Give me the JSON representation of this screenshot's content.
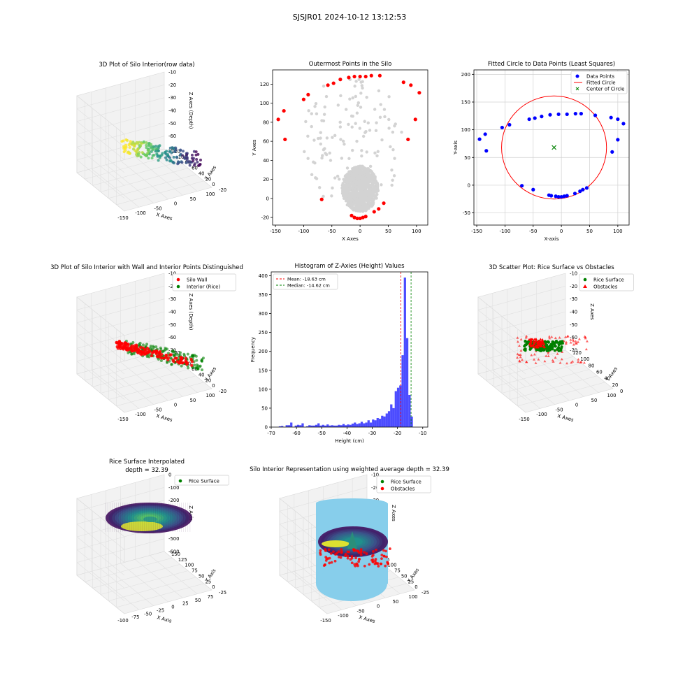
{
  "suptitle": "SJSJR01 2024-10-12 13:12:53",
  "chart_data": [
    {
      "id": "p1",
      "type": "scatter",
      "projection": "3d",
      "title": "3D Plot of Silo Interior(row data)",
      "xlabel": "X Axes",
      "ylabel": "Y Axes",
      "zlabel": "Z Axes (Depth)",
      "xticks": [
        "-150",
        "-100",
        "-50",
        "0",
        "50",
        "100"
      ],
      "yticks": [
        "-20",
        "0",
        "20",
        "40",
        "60",
        "80",
        "100",
        "120"
      ],
      "zticks": [
        "-70",
        "-60",
        "-50",
        "-40",
        "-30",
        "-20",
        "-10"
      ],
      "colormap": "viridis",
      "grid": true
    },
    {
      "id": "p2",
      "type": "scatter",
      "title": "Outermost Points in the Silo",
      "xlabel": "X Axes",
      "ylabel": "Y Axes",
      "xlim": [
        -155,
        120
      ],
      "ylim": [
        -28,
        135
      ],
      "xticks": [
        -150,
        -100,
        -50,
        0,
        50,
        100
      ],
      "yticks": [
        -20,
        0,
        20,
        40,
        60,
        80,
        100,
        120
      ],
      "colors": {
        "interior": "#d3d3d3",
        "outer": "#ff0000"
      },
      "series": [
        {
          "role": "outer",
          "points": [
            [
              -145,
              83
            ],
            [
              -135,
              92
            ],
            [
              -133,
              62
            ],
            [
              -100,
              104
            ],
            [
              -92,
              109
            ],
            [
              -68,
              -1
            ],
            [
              -57,
              119
            ],
            [
              -47,
              121
            ],
            [
              -35,
              125
            ],
            [
              -15,
              -18
            ],
            [
              -10,
              -20
            ],
            [
              -5,
              -21
            ],
            [
              0,
              -21
            ],
            [
              5,
              -20
            ],
            [
              10,
              -19
            ],
            [
              -20,
              127
            ],
            [
              -10,
              128
            ],
            [
              0,
              128
            ],
            [
              10,
              128
            ],
            [
              20,
              129
            ],
            [
              25,
              -14
            ],
            [
              33,
              -11
            ],
            [
              42,
              -5
            ],
            [
              35,
              129
            ],
            [
              77,
              122
            ],
            [
              85,
              62
            ],
            [
              90,
              119
            ],
            [
              98,
              83
            ],
            [
              105,
              111
            ]
          ]
        }
      ]
    },
    {
      "id": "p3",
      "type": "scatter",
      "title": "Fitted Circle to Data Points (Least Squares)",
      "xlabel": "X-axis",
      "ylabel": "Y-axis",
      "xlim": [
        -155,
        120
      ],
      "ylim": [
        -72,
        208
      ],
      "xticks": [
        -150,
        -100,
        -50,
        0,
        50,
        100
      ],
      "yticks": [
        -50,
        0,
        50,
        100,
        150,
        200
      ],
      "legend": [
        "Data Points",
        "Fitted Circle",
        "Center of Circle"
      ],
      "legend_loc": "upper right",
      "circle": {
        "cx": -13,
        "cy": 68,
        "r": 93
      },
      "colors": {
        "points": "#0000ff",
        "circle": "#ff0000",
        "center": "#008000"
      },
      "points": [
        [
          -145,
          83
        ],
        [
          -135,
          92
        ],
        [
          -133,
          62
        ],
        [
          -105,
          104
        ],
        [
          -92,
          109
        ],
        [
          -70,
          -1
        ],
        [
          -57,
          119
        ],
        [
          -47,
          121
        ],
        [
          -35,
          124
        ],
        [
          -20,
          127
        ],
        [
          -5,
          128
        ],
        [
          10,
          128
        ],
        [
          25,
          129
        ],
        [
          35,
          129
        ],
        [
          60,
          126
        ],
        [
          -50,
          -8
        ],
        [
          -22,
          -18
        ],
        [
          -18,
          -19
        ],
        [
          -10,
          -20
        ],
        [
          -5,
          -21
        ],
        [
          0,
          -21
        ],
        [
          5,
          -20
        ],
        [
          10,
          -19
        ],
        [
          24,
          -15
        ],
        [
          33,
          -11
        ],
        [
          38,
          -8
        ],
        [
          45,
          -5
        ],
        [
          88,
          122
        ],
        [
          90,
          60
        ],
        [
          100,
          119
        ],
        [
          100,
          82
        ],
        [
          110,
          111
        ]
      ]
    },
    {
      "id": "p4",
      "type": "scatter",
      "projection": "3d",
      "title": "3D Plot of Silo Interior with Wall and Interior Points Distinguished",
      "xlabel": "X Axes",
      "ylabel": "Y Axes",
      "zlabel": "Z Axes (Depth)",
      "xticks": [
        "-150",
        "-100",
        "-50",
        "0",
        "50",
        "100"
      ],
      "yticks": [
        "-20",
        "0",
        "20",
        "40",
        "60",
        "80",
        "100",
        "120"
      ],
      "zticks": [
        "-70",
        "-60",
        "-50",
        "-40",
        "-30",
        "-20",
        "-10"
      ],
      "legend": [
        "Silo Wall",
        "Interior (Rice)"
      ],
      "legend_loc": "upper right",
      "colors": {
        "wall": "#ff0000",
        "interior": "#008000"
      }
    },
    {
      "id": "p5",
      "type": "bar",
      "title": "Histogram of Z-Axies (Height) Values",
      "xlabel": "Height (cm)",
      "ylabel": "Frequency",
      "xlim": [
        -70,
        -8
      ],
      "ylim": [
        0,
        410
      ],
      "xticks": [
        -70,
        -60,
        -50,
        -40,
        -30,
        -20,
        -10
      ],
      "yticks": [
        0,
        50,
        100,
        150,
        200,
        250,
        300,
        350,
        400
      ],
      "bin_width": 0.9,
      "bins_start": [
        -67.0,
        -66.1,
        -65.2,
        -64.3,
        -63.4,
        -62.5,
        -61.6,
        -60.7,
        -59.8,
        -58.9,
        -58.0,
        -57.1,
        -56.2,
        -55.3,
        -54.4,
        -53.5,
        -52.6,
        -51.7,
        -50.8,
        -49.9,
        -49.0,
        -48.1,
        -47.2,
        -46.3,
        -45.4,
        -44.5,
        -43.6,
        -42.7,
        -41.8,
        -40.9,
        -40.0,
        -39.1,
        -38.2,
        -37.3,
        -36.4,
        -35.5,
        -34.6,
        -33.7,
        -32.8,
        -31.9,
        -31.0,
        -30.1,
        -29.2,
        -28.3,
        -27.4,
        -26.5,
        -25.6,
        -24.7,
        -23.8,
        -22.9,
        -22.0,
        -21.1,
        -20.2,
        -19.3,
        -18.4,
        -17.5,
        -16.6,
        -15.7,
        -14.8,
        -13.9,
        -13.0,
        -12.1,
        -11.2,
        -10.3
      ],
      "values": [
        2,
        3,
        0,
        5,
        5,
        12,
        0,
        4,
        6,
        5,
        10,
        0,
        2,
        5,
        4,
        4,
        6,
        10,
        4,
        6,
        4,
        7,
        4,
        5,
        4,
        4,
        6,
        5,
        8,
        5,
        7,
        6,
        9,
        12,
        8,
        10,
        14,
        10,
        12,
        18,
        12,
        20,
        18,
        24,
        22,
        30,
        28,
        36,
        42,
        60,
        50,
        95,
        104,
        110,
        190,
        395,
        235,
        85,
        28,
        0,
        0,
        0,
        0,
        0
      ],
      "bar_color": "#0000ff",
      "vlines": [
        {
          "label": "Mean: -18.63 cm",
          "x": -18.63,
          "color": "#ff0000"
        },
        {
          "label": "Median: -14.62 cm",
          "x": -14.62,
          "color": "#008000"
        }
      ],
      "legend_loc": "upper left"
    },
    {
      "id": "p6",
      "type": "scatter",
      "projection": "3d",
      "title": "3D Scatter Plot: Rice Surface vs Obstacles",
      "xlabel": "X Axes",
      "ylabel": "Y Axes",
      "zlabel": "Z Axes",
      "xticks": [
        "-150",
        "-100",
        "-50",
        "0",
        "50",
        "100"
      ],
      "yticks": [
        "0",
        "20",
        "40",
        "60",
        "80",
        "100",
        "120"
      ],
      "zticks": [
        "-70",
        "-60",
        "-50",
        "-40",
        "-30",
        "-20",
        "-10"
      ],
      "legend": [
        "Rice Surface",
        "Obstacles"
      ],
      "legend_loc": "upper right",
      "colors": {
        "rice": "#008000",
        "obstacles": "#ff0000"
      }
    },
    {
      "id": "p7",
      "type": "area",
      "projection": "3d",
      "title": "Rice Surface Interpolated\ndepth = 32.39",
      "title_lines": [
        "Rice Surface Interpolated",
        "depth = 32.39"
      ],
      "xlabel": "X Axis",
      "ylabel": "Y Axis",
      "zlabel": "Z Axis",
      "xticks": [
        "-100",
        "-75",
        "-50",
        "-25",
        "0",
        "25",
        "50",
        "75"
      ],
      "yticks": [
        "-25",
        "0",
        "25",
        "50",
        "75",
        "100",
        "125",
        "150"
      ],
      "zticks": [
        "-600",
        "-500",
        "-400",
        "-300",
        "-200",
        "-100",
        "0"
      ],
      "legend": [
        "Rice Surface"
      ],
      "legend_loc": "upper right",
      "colormap": "viridis"
    },
    {
      "id": "p8",
      "type": "area",
      "projection": "3d",
      "title": "Silo Interior Representation using weighted average depth = 32.39",
      "xlabel": "X Axes",
      "ylabel": "Y Axes",
      "zlabel": "Z Axes",
      "xticks": [
        "-150",
        "-100",
        "-50",
        "0",
        "50",
        "100"
      ],
      "yticks": [
        "-25",
        "0",
        "25",
        "50",
        "75",
        "100",
        "125",
        "150"
      ],
      "zticks": [
        "-70",
        "-60",
        "-50",
        "-40",
        "-30",
        "-20",
        "-10"
      ],
      "legend": [
        "Rice Surface",
        "Obstacles"
      ],
      "legend_loc": "upper right",
      "colors": {
        "cylinder": "#87ceeb",
        "rice": "#008000",
        "obstacles": "#ff0000"
      }
    }
  ]
}
